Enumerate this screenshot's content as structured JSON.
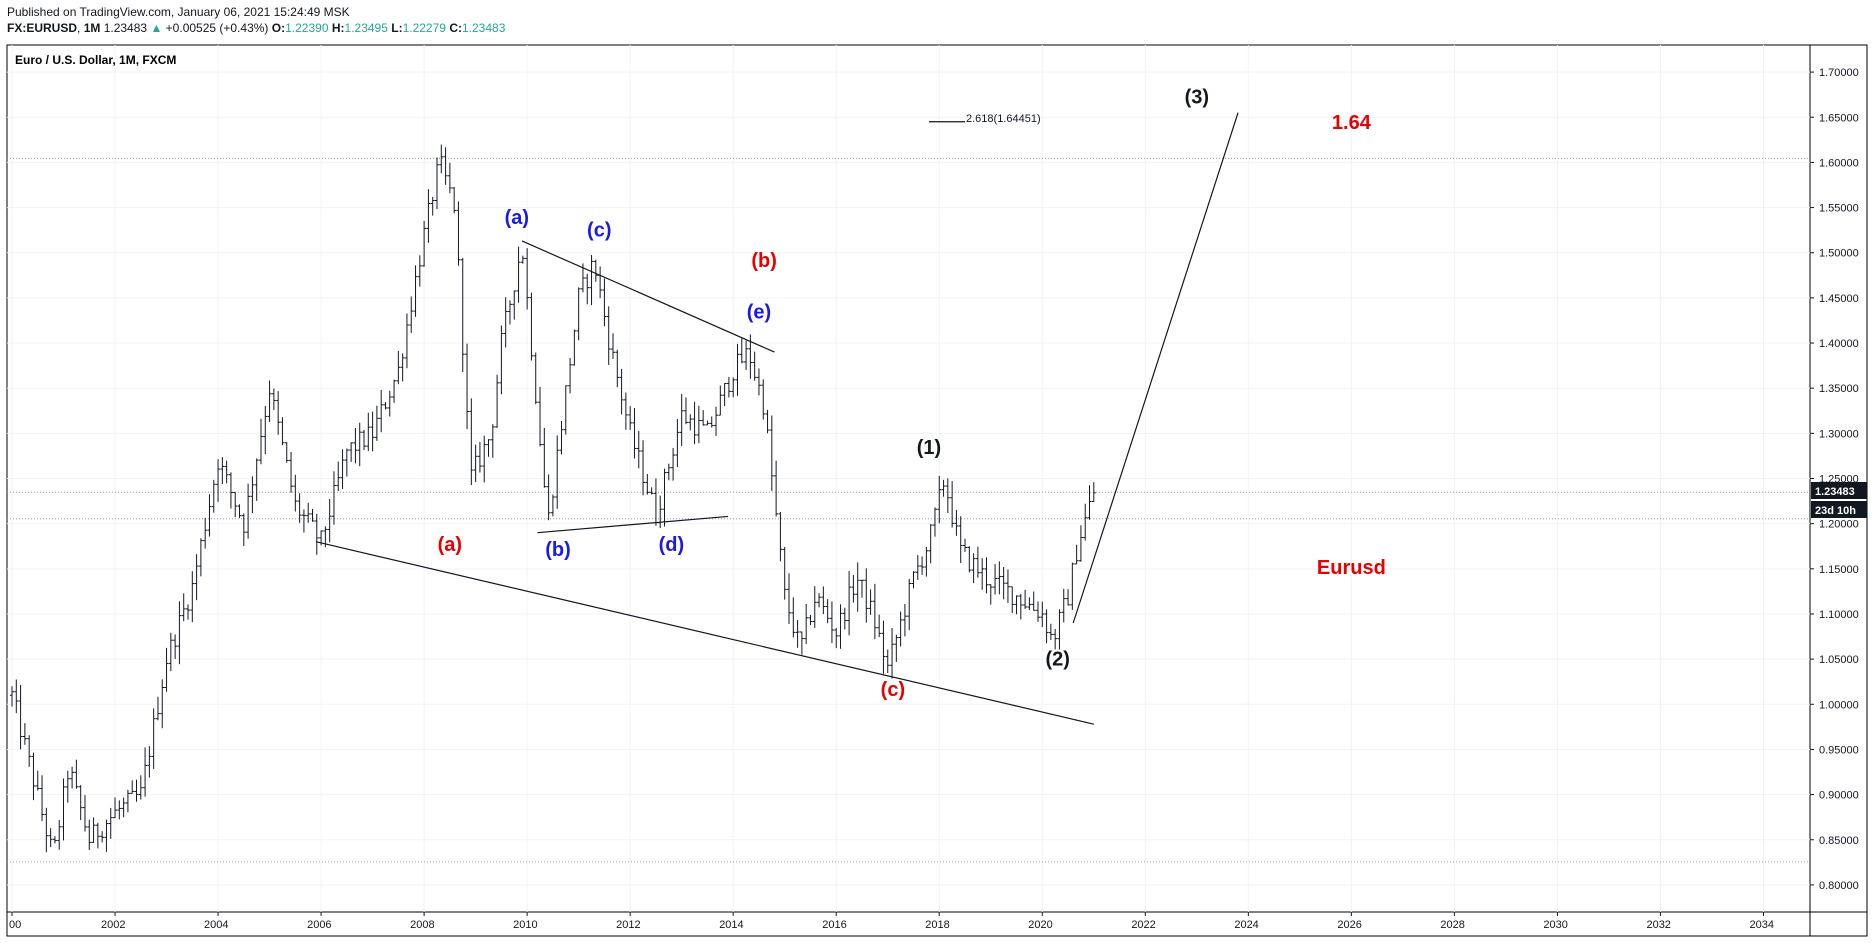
{
  "header": {
    "published": "Published on TradingView.com, January 06, 2021 15:24:49 MSK",
    "symbol": "FX:EURUSD",
    "interval": "1M",
    "last": "1.23483",
    "change": "+0.00525 (+0.43%)",
    "open_label": "O:",
    "open": "1.22390",
    "high_label": "H:",
    "high": "1.23495",
    "low_label": "L:",
    "low": "1.22279",
    "close_label": "C:",
    "close": "1.23483"
  },
  "chart_data": {
    "type": "line",
    "title": "Euro / U.S. Dollar, 1M, FXCM",
    "xlim": [
      2000.0,
      2035.0
    ],
    "ylim": [
      0.77,
      1.73
    ],
    "x_ticks": [
      "00",
      "2002",
      "2004",
      "2006",
      "2008",
      "2010",
      "2012",
      "2014",
      "2016",
      "2018",
      "2020",
      "2022",
      "2024",
      "2026",
      "2028",
      "2030",
      "2032",
      "2034"
    ],
    "x_tick_values": [
      2000,
      2002,
      2004,
      2006,
      2008,
      2010,
      2012,
      2014,
      2016,
      2018,
      2020,
      2022,
      2024,
      2026,
      2028,
      2030,
      2032,
      2034
    ],
    "y_ticks": [
      "0.80000",
      "0.85000",
      "0.90000",
      "0.95000",
      "1.00000",
      "1.05000",
      "1.10000",
      "1.15000",
      "1.20000",
      "1.25000",
      "1.30000",
      "1.35000",
      "1.40000",
      "1.45000",
      "1.50000",
      "1.55000",
      "1.60000",
      "1.65000",
      "1.70000"
    ],
    "y_tick_values": [
      0.8,
      0.85,
      0.9,
      0.95,
      1.0,
      1.05,
      1.1,
      1.15,
      1.2,
      1.25,
      1.3,
      1.35,
      1.4,
      1.45,
      1.5,
      1.55,
      1.6,
      1.65,
      1.7
    ],
    "grid": true,
    "price_path": [
      [
        2000.0,
        1.01
      ],
      [
        2000.8,
        0.83
      ],
      [
        2001.1,
        0.93
      ],
      [
        2001.5,
        0.85
      ],
      [
        2002.0,
        0.88
      ],
      [
        2002.5,
        0.9
      ],
      [
        2003.0,
        1.05
      ],
      [
        2003.5,
        1.13
      ],
      [
        2004.0,
        1.27
      ],
      [
        2004.5,
        1.2
      ],
      [
        2005.0,
        1.35
      ],
      [
        2005.5,
        1.22
      ],
      [
        2006.0,
        1.18
      ],
      [
        2006.5,
        1.28
      ],
      [
        2007.0,
        1.3
      ],
      [
        2007.5,
        1.37
      ],
      [
        2008.0,
        1.52
      ],
      [
        2008.3,
        1.6
      ],
      [
        2008.6,
        1.55
      ],
      [
        2008.9,
        1.25
      ],
      [
        2009.3,
        1.3
      ],
      [
        2009.5,
        1.4
      ],
      [
        2009.9,
        1.51
      ],
      [
        2010.4,
        1.2
      ],
      [
        2011.0,
        1.45
      ],
      [
        2011.3,
        1.49
      ],
      [
        2011.6,
        1.4
      ],
      [
        2012.0,
        1.3
      ],
      [
        2012.5,
        1.21
      ],
      [
        2013.0,
        1.32
      ],
      [
        2013.5,
        1.3
      ],
      [
        2014.0,
        1.37
      ],
      [
        2014.3,
        1.39
      ],
      [
        2014.6,
        1.33
      ],
      [
        2015.0,
        1.12
      ],
      [
        2015.3,
        1.06
      ],
      [
        2015.6,
        1.12
      ],
      [
        2016.0,
        1.08
      ],
      [
        2016.4,
        1.14
      ],
      [
        2016.7,
        1.1
      ],
      [
        2017.0,
        1.04
      ],
      [
        2017.5,
        1.14
      ],
      [
        2017.8,
        1.18
      ],
      [
        2018.1,
        1.25
      ],
      [
        2018.4,
        1.17
      ],
      [
        2018.9,
        1.14
      ],
      [
        2019.5,
        1.12
      ],
      [
        2020.0,
        1.1
      ],
      [
        2020.2,
        1.07
      ],
      [
        2020.5,
        1.12
      ],
      [
        2020.7,
        1.18
      ],
      [
        2021.0,
        1.235
      ]
    ],
    "last_price_label": "1.23483",
    "countdown_label": "23d 10h",
    "horizontal_lines": [
      1.6045,
      1.2348,
      1.2055,
      0.8255
    ],
    "trendlines": [
      {
        "name": "lower-channel",
        "from": [
          2005.9,
          1.18
        ],
        "to": [
          2021.0,
          0.978
        ]
      },
      {
        "name": "upper-triangle",
        "from": [
          2009.9,
          1.513
        ],
        "to": [
          2014.8,
          1.39
        ]
      },
      {
        "name": "lower-triangle",
        "from": [
          2010.2,
          1.19
        ],
        "to": [
          2013.9,
          1.208
        ]
      },
      {
        "name": "wave-3-projection",
        "from": [
          2020.6,
          1.09
        ],
        "to": [
          2023.8,
          1.655
        ]
      },
      {
        "name": "fib-extension",
        "from": [
          2017.8,
          1.645
        ],
        "to": [
          2018.5,
          1.645
        ]
      }
    ],
    "fib_label": "2.618(1.64451)",
    "annotations": [
      {
        "text": "(a)",
        "x": 2009.8,
        "y": 1.532,
        "color": "#1a1ae6"
      },
      {
        "text": "(c)",
        "x": 2011.4,
        "y": 1.518,
        "color": "#1a1ae6"
      },
      {
        "text": "(e)",
        "x": 2014.5,
        "y": 1.427,
        "color": "#1a1ae6"
      },
      {
        "text": "(b)",
        "x": 2010.6,
        "y": 1.164,
        "color": "#1a1ae6"
      },
      {
        "text": "(d)",
        "x": 2012.8,
        "y": 1.17,
        "color": "#1a1ae6"
      },
      {
        "text": "(b)",
        "x": 2014.6,
        "y": 1.484,
        "color": "#e60000"
      },
      {
        "text": "(a)",
        "x": 2008.5,
        "y": 1.17,
        "color": "#e60000"
      },
      {
        "text": "(c)",
        "x": 2017.1,
        "y": 1.009,
        "color": "#e60000"
      },
      {
        "text": "(1)",
        "x": 2017.8,
        "y": 1.277,
        "color": "#131722"
      },
      {
        "text": "(2)",
        "x": 2020.3,
        "y": 1.043,
        "color": "#131722"
      },
      {
        "text": "(3)",
        "x": 2023.0,
        "y": 1.665,
        "color": "#131722"
      },
      {
        "text": "1.64",
        "x": 2026.0,
        "y": 1.637,
        "color": "#e60000"
      },
      {
        "text": "Eurusd",
        "x": 2026.0,
        "y": 1.144,
        "color": "#e60000"
      }
    ]
  }
}
